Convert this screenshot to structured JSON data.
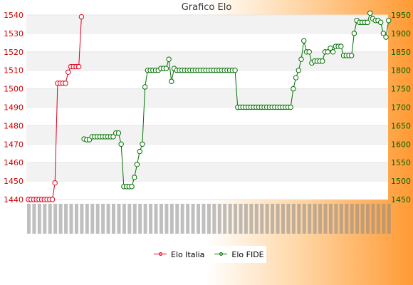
{
  "chart_data": {
    "type": "line",
    "title": "Grafico Elo",
    "xlabel": "",
    "y_left": {
      "ylim": [
        1440,
        1540
      ],
      "ticks": [
        1440,
        1450,
        1460,
        1470,
        1480,
        1490,
        1500,
        1510,
        1520,
        1530,
        1540
      ]
    },
    "y_right": {
      "ylim": [
        1450,
        1950
      ],
      "ticks": [
        1450,
        1500,
        1550,
        1600,
        1650,
        1700,
        1750,
        1800,
        1850,
        1900,
        1950
      ]
    },
    "grid": "horizontal alternating bands",
    "legend_position": "bottom-center",
    "series": [
      {
        "name": "Elo Italia",
        "axis": "left",
        "color": "#e0001b",
        "start": 0,
        "values": [
          1440,
          1440,
          1440,
          1440,
          1440,
          1440,
          1440,
          1440,
          1440,
          1440,
          1449,
          1503,
          1503,
          1503,
          1503,
          1509,
          1512,
          1512,
          1512,
          1512,
          1539
        ]
      },
      {
        "name": "Elo FIDE",
        "axis": "right",
        "color": "#007000",
        "start": 21,
        "values": [
          1614,
          1612,
          1612,
          1620,
          1620,
          1620,
          1620,
          1620,
          1620,
          1620,
          1620,
          1620,
          1630,
          1630,
          1600,
          1485,
          1485,
          1485,
          1485,
          1510,
          1545,
          1580,
          1600,
          1755,
          1800,
          1800,
          1800,
          1800,
          1800,
          1805,
          1805,
          1805,
          1830,
          1770,
          1805,
          1800,
          1800,
          1800,
          1800,
          1800,
          1800,
          1800,
          1800,
          1800,
          1800,
          1800,
          1800,
          1800,
          1800,
          1800,
          1800,
          1800,
          1800,
          1800,
          1800,
          1800,
          1800,
          1800,
          1700,
          1700,
          1700,
          1700,
          1700,
          1700,
          1700,
          1700,
          1700,
          1700,
          1700,
          1700,
          1700,
          1700,
          1700,
          1700,
          1700,
          1700,
          1700,
          1700,
          1700,
          1750,
          1780,
          1800,
          1830,
          1880,
          1850,
          1850,
          1820,
          1825,
          1825,
          1825,
          1825,
          1850,
          1850,
          1860,
          1850,
          1865,
          1865,
          1865,
          1840,
          1840,
          1840,
          1840,
          1900,
          1935,
          1930,
          1930,
          1930,
          1930,
          1955,
          1940,
          1935,
          1935,
          1930,
          1900,
          1890,
          1935
        ]
      }
    ]
  }
}
